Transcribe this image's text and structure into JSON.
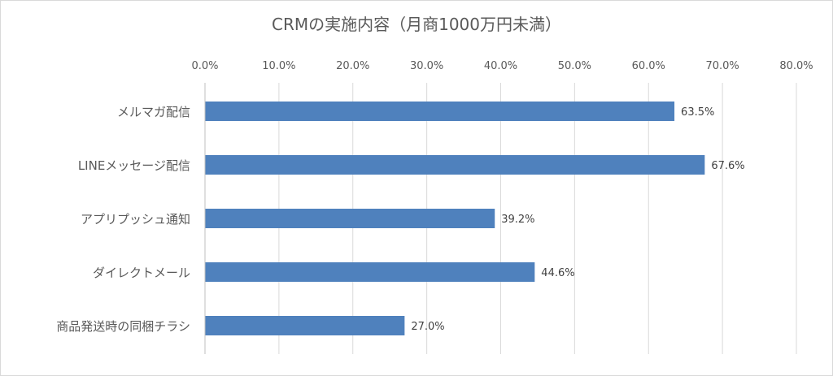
{
  "chart_data": {
    "type": "bar",
    "orientation": "horizontal",
    "title": "CRMの実施内容（月商1000万円未満）",
    "categories": [
      "メルマガ配信",
      "LINEメッセージ配信",
      "アプリプッシュ通知",
      "ダイレクトメール",
      "商品発送時の同梱チラシ"
    ],
    "values": [
      63.5,
      67.6,
      39.2,
      44.6,
      27.0
    ],
    "value_labels": [
      "63.5%",
      "67.6%",
      "39.2%",
      "44.6%",
      "27.0%"
    ],
    "xlim": [
      0,
      80
    ],
    "x_ticks": [
      "0.0%",
      "10.0%",
      "20.0%",
      "30.0%",
      "40.0%",
      "50.0%",
      "60.0%",
      "70.0%",
      "80.0%"
    ],
    "x_axis_position": "top",
    "grid": true,
    "bar_color": "#4f81bd",
    "xlabel": "",
    "ylabel": ""
  }
}
